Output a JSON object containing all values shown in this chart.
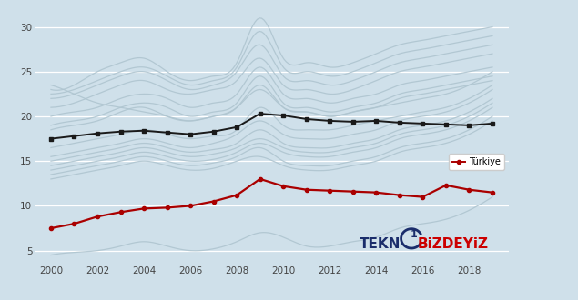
{
  "years": [
    2000,
    2001,
    2002,
    2003,
    2004,
    2005,
    2006,
    2007,
    2008,
    2009,
    2010,
    2011,
    2012,
    2013,
    2014,
    2015,
    2016,
    2017,
    2018,
    2019
  ],
  "turkey": [
    7.5,
    8.0,
    8.8,
    9.3,
    9.7,
    9.8,
    10.0,
    10.5,
    11.2,
    13.0,
    12.2,
    11.8,
    11.7,
    11.6,
    11.5,
    11.2,
    11.0,
    12.3,
    11.8,
    11.5
  ],
  "average": [
    17.5,
    17.8,
    18.1,
    18.3,
    18.4,
    18.2,
    18.0,
    18.3,
    18.8,
    20.3,
    20.1,
    19.7,
    19.5,
    19.4,
    19.5,
    19.3,
    19.2,
    19.1,
    19.0,
    19.2
  ],
  "background_color": "#cfe0ea",
  "gray_lines": [
    [
      23.0,
      23.5,
      25.0,
      26.0,
      26.5,
      25.0,
      24.0,
      24.5,
      26.0,
      31.0,
      26.5,
      26.0,
      25.5,
      26.0,
      27.0,
      28.0,
      28.5,
      29.0,
      29.5,
      30.0
    ],
    [
      22.5,
      23.0,
      24.0,
      25.0,
      25.5,
      24.5,
      23.5,
      24.0,
      25.5,
      29.5,
      25.5,
      25.0,
      24.5,
      25.0,
      26.0,
      27.0,
      27.5,
      28.0,
      28.5,
      29.0
    ],
    [
      22.0,
      22.5,
      23.5,
      24.5,
      25.0,
      24.0,
      23.0,
      23.5,
      25.0,
      28.0,
      24.5,
      24.0,
      23.5,
      24.0,
      25.0,
      26.0,
      26.5,
      27.0,
      27.5,
      28.0
    ],
    [
      21.0,
      21.5,
      22.5,
      23.5,
      24.0,
      23.0,
      22.5,
      23.0,
      24.0,
      26.5,
      23.5,
      23.0,
      22.5,
      23.0,
      24.0,
      25.0,
      25.5,
      26.0,
      26.5,
      27.0
    ],
    [
      23.5,
      22.5,
      21.5,
      21.0,
      20.5,
      20.0,
      19.5,
      20.0,
      21.0,
      23.0,
      21.0,
      20.5,
      20.0,
      20.5,
      21.0,
      21.5,
      22.0,
      22.5,
      23.5,
      25.0
    ],
    [
      20.0,
      20.5,
      21.0,
      22.0,
      22.5,
      22.0,
      21.0,
      21.5,
      22.5,
      25.5,
      22.5,
      22.0,
      21.5,
      22.0,
      22.5,
      23.5,
      24.0,
      24.5,
      25.0,
      25.5
    ],
    [
      19.0,
      19.5,
      20.0,
      21.0,
      21.5,
      21.0,
      20.0,
      20.5,
      21.5,
      24.5,
      21.5,
      21.0,
      20.5,
      21.0,
      21.5,
      22.5,
      23.0,
      23.5,
      24.0,
      24.5
    ],
    [
      18.5,
      19.0,
      19.5,
      20.5,
      21.0,
      20.0,
      19.5,
      20.0,
      21.0,
      23.5,
      21.0,
      20.5,
      20.0,
      20.5,
      21.0,
      22.0,
      22.5,
      23.0,
      23.5,
      24.0
    ],
    [
      16.5,
      17.0,
      17.5,
      18.0,
      18.5,
      18.0,
      17.5,
      17.8,
      18.5,
      21.0,
      19.0,
      18.5,
      18.5,
      19.0,
      19.5,
      20.0,
      20.5,
      21.0,
      22.0,
      23.5
    ],
    [
      15.5,
      16.0,
      16.5,
      17.0,
      17.5,
      17.0,
      16.5,
      17.0,
      18.0,
      19.5,
      18.0,
      17.5,
      17.5,
      18.0,
      18.5,
      19.5,
      20.0,
      20.5,
      21.5,
      23.0
    ],
    [
      15.0,
      15.5,
      16.0,
      16.5,
      17.0,
      16.5,
      16.0,
      16.3,
      17.0,
      18.5,
      17.0,
      16.5,
      16.5,
      17.0,
      17.5,
      18.5,
      19.0,
      19.5,
      20.5,
      22.0
    ],
    [
      14.5,
      15.0,
      15.5,
      16.0,
      16.5,
      16.0,
      15.5,
      15.8,
      16.5,
      17.5,
      16.5,
      16.0,
      16.0,
      16.5,
      17.0,
      18.0,
      18.5,
      19.0,
      20.0,
      21.5
    ],
    [
      14.0,
      14.5,
      15.0,
      15.5,
      16.0,
      15.5,
      15.0,
      15.2,
      16.0,
      17.0,
      16.0,
      15.5,
      15.5,
      16.0,
      16.5,
      17.5,
      18.0,
      18.5,
      19.5,
      21.0
    ],
    [
      13.5,
      14.0,
      14.5,
      15.0,
      15.5,
      15.0,
      14.5,
      14.8,
      15.5,
      16.5,
      15.0,
      14.5,
      14.5,
      15.0,
      15.5,
      16.5,
      17.0,
      17.5,
      18.5,
      20.0
    ],
    [
      13.0,
      13.5,
      14.0,
      14.5,
      15.0,
      14.5,
      14.0,
      14.2,
      15.0,
      15.5,
      14.5,
      14.0,
      14.0,
      14.5,
      15.0,
      16.0,
      16.5,
      17.0,
      18.0,
      19.5
    ],
    [
      4.5,
      4.8,
      5.0,
      5.5,
      6.0,
      5.5,
      5.0,
      5.2,
      6.0,
      7.0,
      6.5,
      5.5,
      5.5,
      6.0,
      6.5,
      7.5,
      8.0,
      8.5,
      9.5,
      11.0
    ]
  ],
  "turkey_color": "#aa0000",
  "average_color": "#1a1a1a",
  "gray_color": "#afc5d0",
  "ylim": [
    3.5,
    32
  ],
  "yticks": [
    5,
    10,
    15,
    20,
    25,
    30
  ],
  "xticks": [
    2000,
    2002,
    2004,
    2006,
    2008,
    2010,
    2012,
    2014,
    2016,
    2018
  ],
  "legend_label": "Türkiye"
}
